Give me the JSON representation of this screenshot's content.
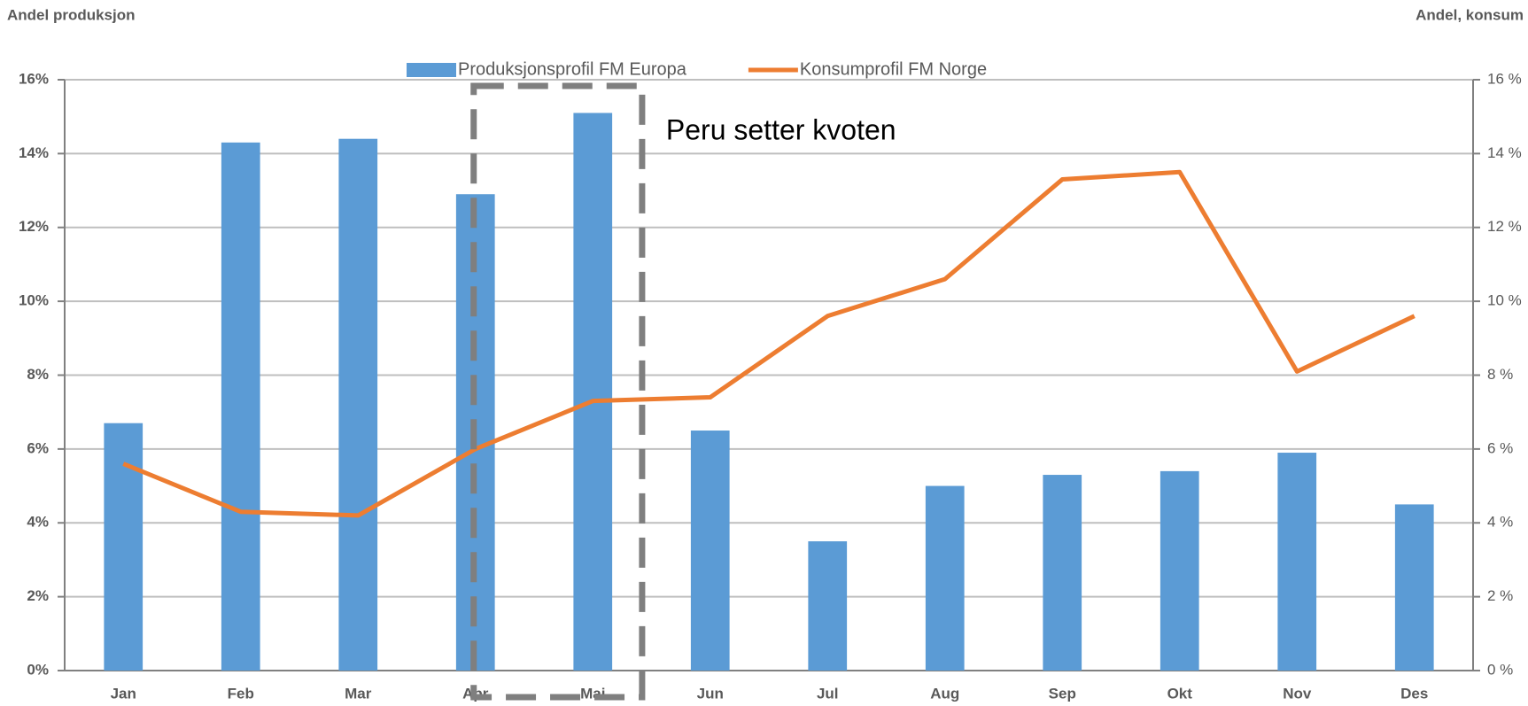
{
  "chart_data": {
    "type": "bar_line",
    "y_axis_label": "Andel produksjon",
    "y2_axis_label": "Andel, konsum",
    "annotation": "Peru setter kvoten",
    "categories": [
      "Jan",
      "Feb",
      "Mar",
      "Apr",
      "Mai",
      "Jun",
      "Jul",
      "Aug",
      "Sep",
      "Okt",
      "Nov",
      "Des"
    ],
    "series": [
      {
        "name": "Produksjonsprofil FM Europa",
        "type": "bar",
        "color": "#5b9bd5",
        "axis": "y",
        "values": [
          6.7,
          14.3,
          14.4,
          12.9,
          15.1,
          6.5,
          3.5,
          5.0,
          5.3,
          5.4,
          5.9,
          4.5
        ]
      },
      {
        "name": "Konsumprofil FM Norge",
        "type": "line",
        "color": "#ed7d31",
        "axis": "y2",
        "values": [
          5.6,
          4.3,
          4.2,
          6.0,
          7.3,
          7.4,
          9.6,
          10.6,
          13.3,
          13.5,
          8.1,
          9.6
        ]
      }
    ],
    "ylim": [
      0,
      16
    ],
    "yticks": [
      {
        "value": 0,
        "label": "0%"
      },
      {
        "value": 2,
        "label": "2%"
      },
      {
        "value": 4,
        "label": "4%"
      },
      {
        "value": 6,
        "label": "6%"
      },
      {
        "value": 8,
        "label": "8%"
      },
      {
        "value": 10,
        "label": "10%"
      },
      {
        "value": 12,
        "label": "12%"
      },
      {
        "value": 14,
        "label": "14%"
      },
      {
        "value": 16,
        "label": "16%"
      }
    ],
    "y2lim": [
      0,
      16
    ],
    "y2ticks": [
      {
        "value": 0,
        "label": "0 %"
      },
      {
        "value": 2,
        "label": "2 %"
      },
      {
        "value": 4,
        "label": "4 %"
      },
      {
        "value": 6,
        "label": "6 %"
      },
      {
        "value": 8,
        "label": "8 %"
      },
      {
        "value": 10,
        "label": "10 %"
      },
      {
        "value": 12,
        "label": "12 %"
      },
      {
        "value": 14,
        "label": "14 %"
      },
      {
        "value": 16,
        "label": "16 %"
      }
    ],
    "grid": true
  }
}
